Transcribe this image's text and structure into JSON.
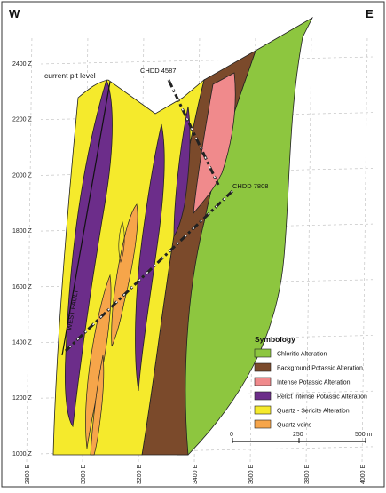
{
  "title": "",
  "directions": {
    "west": "W",
    "east": "E"
  },
  "northing_labels": [
    "2400 Z",
    "2200 Z",
    "2000 Z",
    "1800 Z",
    "1600 Z",
    "1400 Z",
    "1200 Z",
    "1000 Z"
  ],
  "easting_labels": [
    "2800 E",
    "3000 E",
    "3200 E",
    "3400 E",
    "3600 E",
    "3800 E",
    "4000 E"
  ],
  "annotations": {
    "pit_level": "current pit level",
    "drillhole_1": "CHDD 4587",
    "drillhole_2": "CHDD 7808",
    "fault": "WEST FAULT"
  },
  "legend": {
    "title": "Symbology",
    "items": [
      {
        "label": "Chloritic Alteration",
        "color": "#8dc63f"
      },
      {
        "label": "Background Potassic Alteration",
        "color": "#7b4a2b"
      },
      {
        "label": "Intense Potassic Alteration",
        "color": "#f08a8c"
      },
      {
        "label": "Relict Intense Potassic Alteration",
        "color": "#6c2d8a"
      },
      {
        "label": "Quartz - Sericite Alteration",
        "color": "#f5ea2c"
      },
      {
        "label": "Quartz veins",
        "color": "#f6a54a"
      }
    ]
  },
  "scale_bar": {
    "start": "0",
    "mid": "250",
    "end": "500 m"
  }
}
